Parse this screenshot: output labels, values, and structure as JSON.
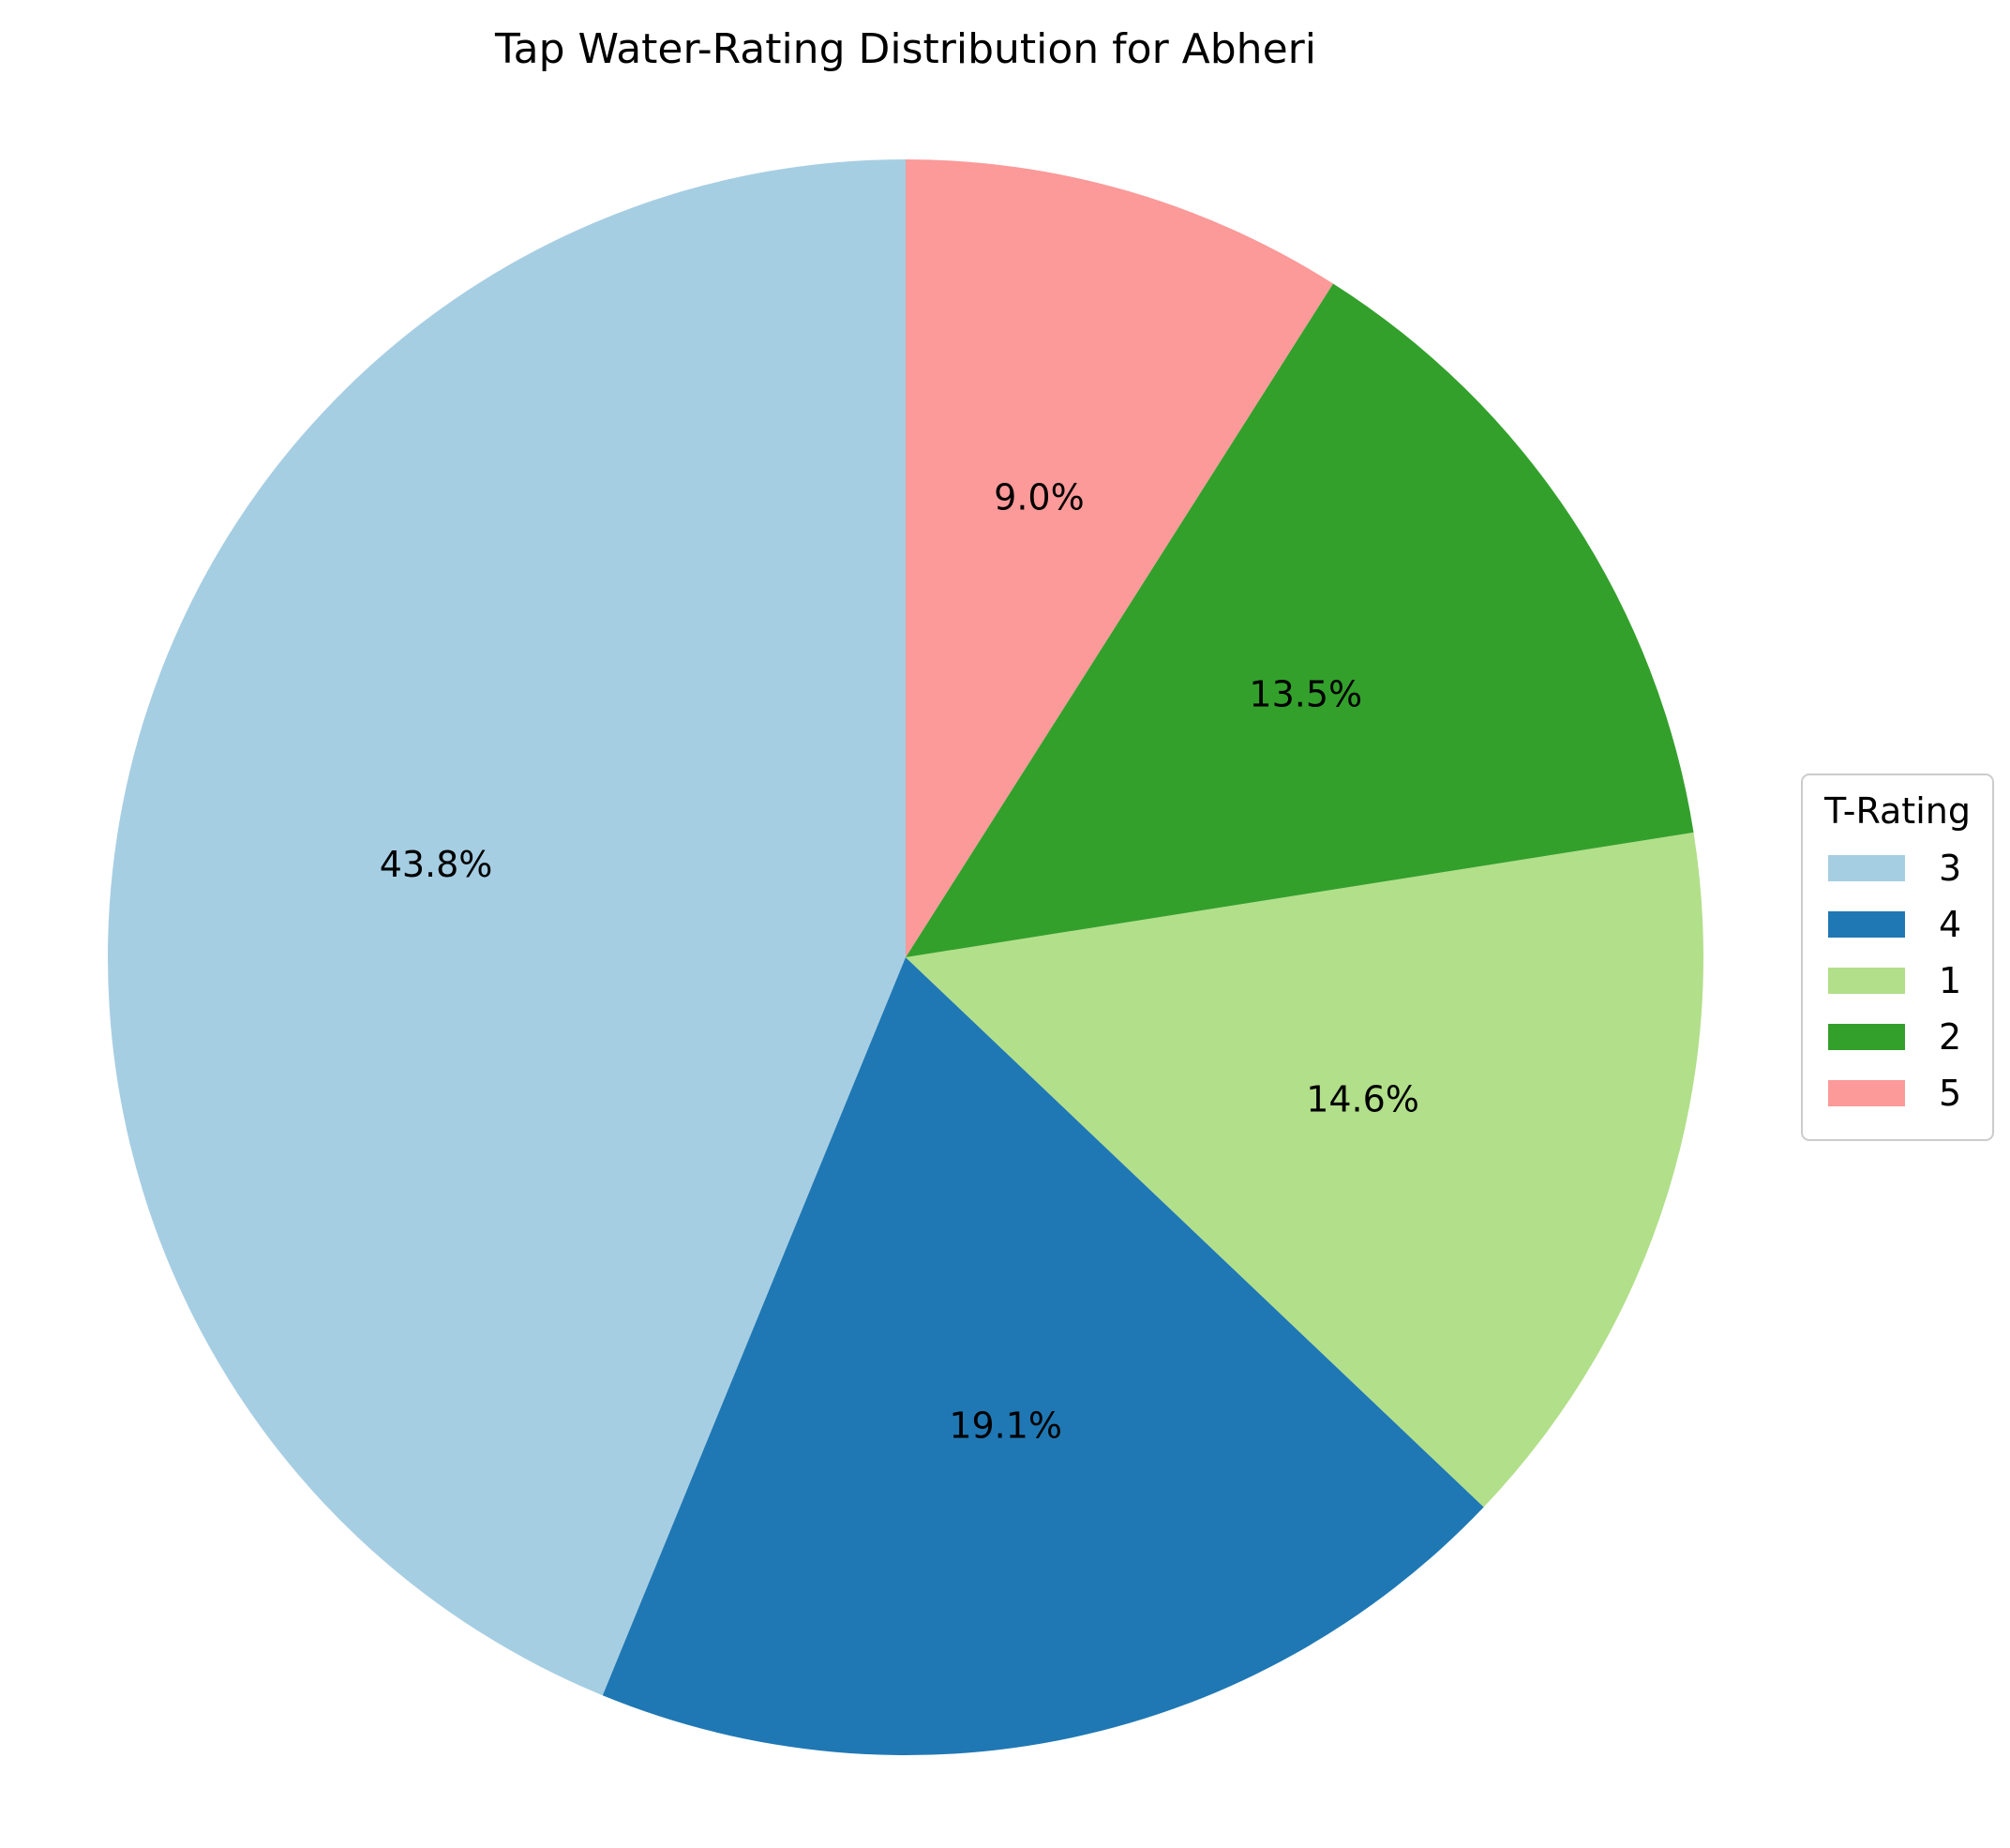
{
  "chart_data": {
    "type": "pie",
    "title": "Tap Water-Rating Distribution for Abheri",
    "start_angle_deg": 90,
    "direction": "counterclockwise",
    "slices": [
      {
        "label": "3",
        "value": 43.8,
        "pct_label": "43.8%",
        "color": "#a6cee3"
      },
      {
        "label": "4",
        "value": 19.1,
        "pct_label": "19.1%",
        "color": "#1f78b4"
      },
      {
        "label": "1",
        "value": 14.6,
        "pct_label": "14.6%",
        "color": "#b2df8a"
      },
      {
        "label": "2",
        "value": 13.5,
        "pct_label": "13.5%",
        "color": "#33a02c"
      },
      {
        "label": "5",
        "value": 9.0,
        "pct_label": "9.0%",
        "color": "#fb9a99"
      }
    ],
    "legend": {
      "title": "T-Rating",
      "placement": "right"
    }
  }
}
